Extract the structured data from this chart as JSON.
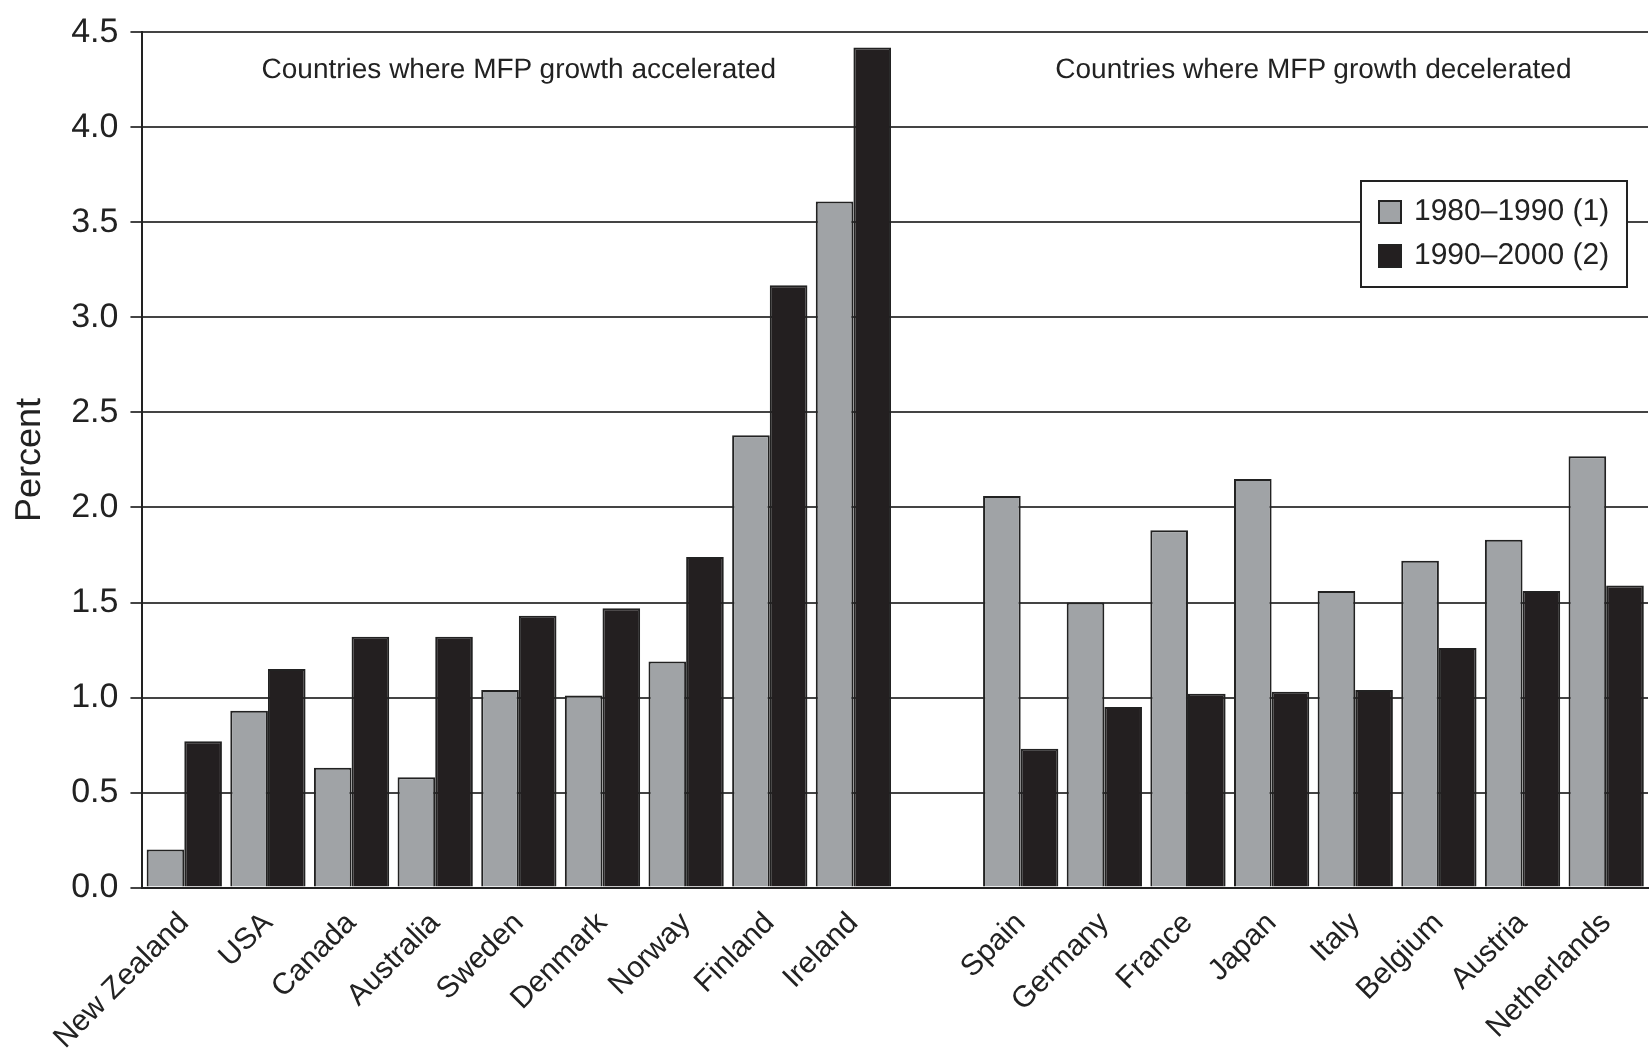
{
  "chart_data": {
    "type": "bar",
    "ylabel": "Percent",
    "categories": [
      "New Zealand",
      "USA",
      "Canada",
      "Australia",
      "Sweden",
      "Denmark",
      "Norway",
      "Finland",
      "Ireland",
      null,
      "Spain",
      "Germany",
      "France",
      "Japan",
      "Italy",
      "Belgium",
      "Austria",
      "Netherlands"
    ],
    "series": [
      {
        "name": "1980–1990 (1)",
        "color": "#a0a3a6",
        "values": [
          0.2,
          0.93,
          0.63,
          0.58,
          1.04,
          1.01,
          1.19,
          2.38,
          3.61,
          null,
          2.06,
          1.5,
          1.88,
          2.15,
          1.56,
          1.72,
          1.83,
          2.27
        ]
      },
      {
        "name": "1990–2000 (2)",
        "color": "#231f20",
        "values": [
          0.77,
          1.15,
          1.32,
          1.32,
          1.43,
          1.47,
          1.74,
          3.17,
          4.42,
          null,
          0.73,
          0.95,
          1.02,
          1.03,
          1.04,
          1.26,
          1.56,
          1.59
        ]
      }
    ],
    "ylim": [
      0,
      4.5
    ],
    "yticks": [
      {
        "value": 0,
        "label": "0.0"
      },
      {
        "value": 0.5,
        "label": "0.5"
      },
      {
        "value": 1,
        "label": "1.0"
      },
      {
        "value": 1.5,
        "label": "1.5"
      },
      {
        "value": 2,
        "label": "2.0"
      },
      {
        "value": 2.5,
        "label": "2.5"
      },
      {
        "value": 3,
        "label": "3.0"
      },
      {
        "value": 3.5,
        "label": "3.5"
      },
      {
        "value": 4,
        "label": "4.0"
      },
      {
        "value": 4.5,
        "label": "4.5"
      }
    ],
    "grid": "y",
    "legend": "top right",
    "annotations": [
      "Countries where MFP growth accelerated",
      "Countries where MFP growth decelerated"
    ]
  }
}
